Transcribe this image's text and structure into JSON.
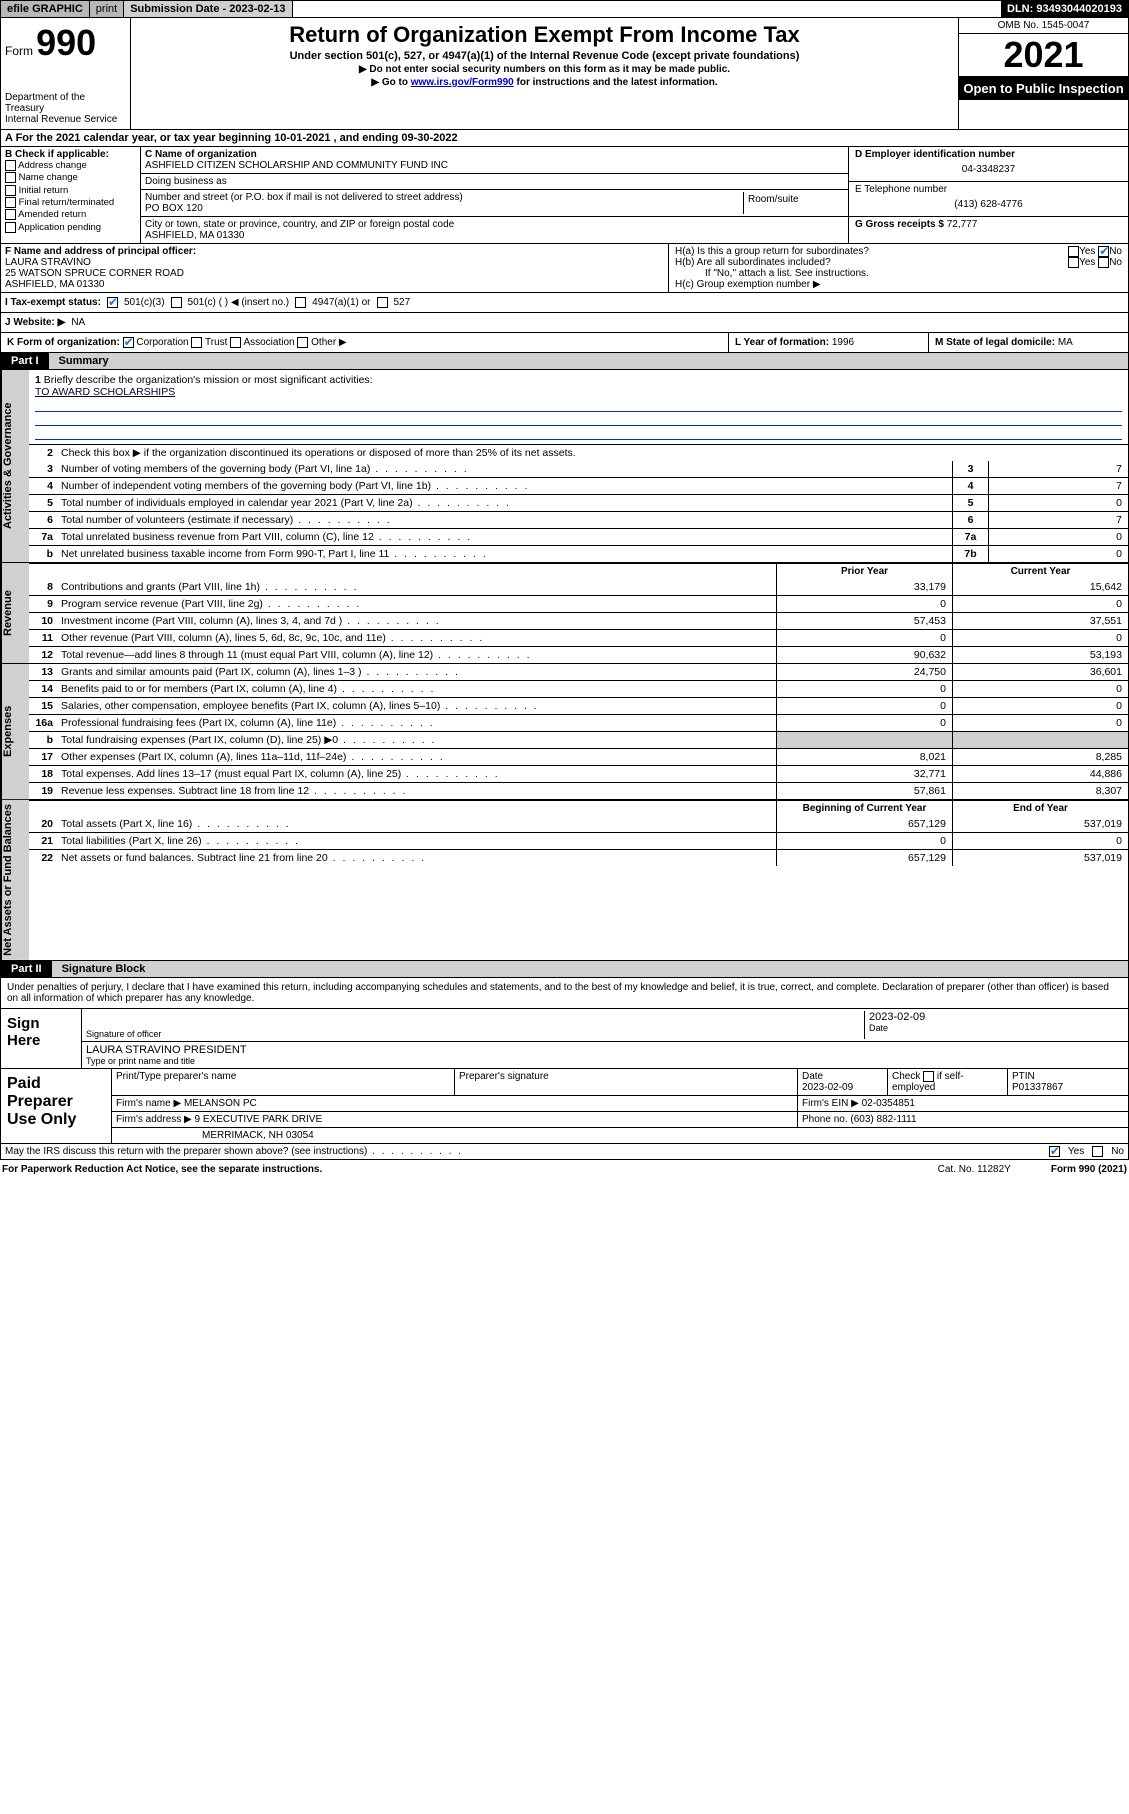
{
  "topbar": {
    "efile": "efile GRAPHIC",
    "print": "print",
    "sub_label": "Submission Date - ",
    "sub_date": "2023-02-13",
    "dln": "DLN: 93493044020193"
  },
  "header": {
    "form_prefix": "Form",
    "form_num": "990",
    "title": "Return of Organization Exempt From Income Tax",
    "subtitle": "Under section 501(c), 527, or 4947(a)(1) of the Internal Revenue Code (except private foundations)",
    "note1": "▶ Do not enter social security numbers on this form as it may be made public.",
    "note2_pre": "▶ Go to ",
    "note2_link": "www.irs.gov/Form990",
    "note2_post": " for instructions and the latest information.",
    "dept": "Department of the Treasury",
    "irs": "Internal Revenue Service",
    "omb": "OMB No. 1545-0047",
    "year": "2021",
    "inspection": "Open to Public Inspection"
  },
  "rowA": "A For the 2021 calendar year, or tax year beginning 10-01-2021   , and ending 09-30-2022",
  "colB": {
    "hdr": "B Check if applicable:",
    "opts": [
      "Address change",
      "Name change",
      "Initial return",
      "Final return/terminated",
      "Amended return",
      "Application pending"
    ]
  },
  "colC": {
    "name_lbl": "C Name of organization",
    "name": "ASHFIELD CITIZEN SCHOLARSHIP AND COMMUNITY FUND INC",
    "dba_lbl": "Doing business as",
    "dba": "",
    "street_lbl": "Number and street (or P.O. box if mail is not delivered to street address)",
    "room_lbl": "Room/suite",
    "street": "PO BOX 120",
    "city_lbl": "City or town, state or province, country, and ZIP or foreign postal code",
    "city": "ASHFIELD, MA  01330"
  },
  "colD": {
    "ein_lbl": "D Employer identification number",
    "ein": "04-3348237",
    "tel_lbl": "E Telephone number",
    "tel": "(413) 628-4776",
    "gross_lbl": "G Gross receipts $",
    "gross": "72,777"
  },
  "rowF": {
    "lbl": "F Name and address of principal officer:",
    "name": "LAURA STRAVINO",
    "addr1": "25 WATSON SPRUCE CORNER ROAD",
    "addr2": "ASHFIELD, MA  01330"
  },
  "rowH": {
    "a": "H(a)  Is this a group return for subordinates?",
    "b": "H(b)  Are all subordinates included?",
    "b_note": "If \"No,\" attach a list. See instructions.",
    "c": "H(c)  Group exemption number ▶"
  },
  "rowI": {
    "lbl": "I   Tax-exempt status:",
    "o1": "501(c)(3)",
    "o2": "501(c) (  ) ◀ (insert no.)",
    "o3": "4947(a)(1) or",
    "o4": "527"
  },
  "rowJ": {
    "lbl": "J   Website: ▶",
    "val": "NA"
  },
  "rowK": {
    "lbl": "K Form of organization:",
    "opts": [
      "Corporation",
      "Trust",
      "Association",
      "Other ▶"
    ]
  },
  "rowL": {
    "lbl": "L Year of formation:",
    "val": "1996"
  },
  "rowM": {
    "lbl": "M State of legal domicile:",
    "val": "MA"
  },
  "parts": {
    "p1": "Part I",
    "p1_title": "Summary",
    "p2": "Part II",
    "p2_title": "Signature Block"
  },
  "sections": {
    "gov": "Activities & Governance",
    "rev": "Revenue",
    "exp": "Expenses",
    "net": "Net Assets or Fund Balances"
  },
  "gov": {
    "l1_lbl": "Briefly describe the organization's mission or most significant activities:",
    "l1_val": "TO AWARD SCHOLARSHIPS",
    "l2": "Check this box ▶       if the organization discontinued its operations or disposed of more than 25% of its net assets.",
    "rows": [
      {
        "n": "3",
        "d": "Number of voting members of the governing body (Part VI, line 1a)",
        "b": "3",
        "v": "7"
      },
      {
        "n": "4",
        "d": "Number of independent voting members of the governing body (Part VI, line 1b)",
        "b": "4",
        "v": "7"
      },
      {
        "n": "5",
        "d": "Total number of individuals employed in calendar year 2021 (Part V, line 2a)",
        "b": "5",
        "v": "0"
      },
      {
        "n": "6",
        "d": "Total number of volunteers (estimate if necessary)",
        "b": "6",
        "v": "7"
      },
      {
        "n": "7a",
        "d": "Total unrelated business revenue from Part VIII, column (C), line 12",
        "b": "7a",
        "v": "0"
      },
      {
        "n": "b",
        "d": "Net unrelated business taxable income from Form 990-T, Part I, line 11",
        "b": "7b",
        "v": "0"
      }
    ]
  },
  "hdr2": {
    "prior": "Prior Year",
    "curr": "Current Year"
  },
  "rev": [
    {
      "n": "8",
      "d": "Contributions and grants (Part VIII, line 1h)",
      "p": "33,179",
      "c": "15,642"
    },
    {
      "n": "9",
      "d": "Program service revenue (Part VIII, line 2g)",
      "p": "0",
      "c": "0"
    },
    {
      "n": "10",
      "d": "Investment income (Part VIII, column (A), lines 3, 4, and 7d )",
      "p": "57,453",
      "c": "37,551"
    },
    {
      "n": "11",
      "d": "Other revenue (Part VIII, column (A), lines 5, 6d, 8c, 9c, 10c, and 11e)",
      "p": "0",
      "c": "0"
    },
    {
      "n": "12",
      "d": "Total revenue—add lines 8 through 11 (must equal Part VIII, column (A), line 12)",
      "p": "90,632",
      "c": "53,193"
    }
  ],
  "exp": [
    {
      "n": "13",
      "d": "Grants and similar amounts paid (Part IX, column (A), lines 1–3 )",
      "p": "24,750",
      "c": "36,601"
    },
    {
      "n": "14",
      "d": "Benefits paid to or for members (Part IX, column (A), line 4)",
      "p": "0",
      "c": "0"
    },
    {
      "n": "15",
      "d": "Salaries, other compensation, employee benefits (Part IX, column (A), lines 5–10)",
      "p": "0",
      "c": "0"
    },
    {
      "n": "16a",
      "d": "Professional fundraising fees (Part IX, column (A), line 11e)",
      "p": "0",
      "c": "0"
    },
    {
      "n": "b",
      "d": "Total fundraising expenses (Part IX, column (D), line 25) ▶0",
      "p": "",
      "c": "",
      "grey": true
    },
    {
      "n": "17",
      "d": "Other expenses (Part IX, column (A), lines 11a–11d, 11f–24e)",
      "p": "8,021",
      "c": "8,285"
    },
    {
      "n": "18",
      "d": "Total expenses. Add lines 13–17 (must equal Part IX, column (A), line 25)",
      "p": "32,771",
      "c": "44,886"
    },
    {
      "n": "19",
      "d": "Revenue less expenses. Subtract line 18 from line 12",
      "p": "57,861",
      "c": "8,307"
    }
  ],
  "hdr3": {
    "beg": "Beginning of Current Year",
    "end": "End of Year"
  },
  "net": [
    {
      "n": "20",
      "d": "Total assets (Part X, line 16)",
      "p": "657,129",
      "c": "537,019"
    },
    {
      "n": "21",
      "d": "Total liabilities (Part X, line 26)",
      "p": "0",
      "c": "0"
    },
    {
      "n": "22",
      "d": "Net assets or fund balances. Subtract line 21 from line 20",
      "p": "657,129",
      "c": "537,019"
    }
  ],
  "sig": {
    "decl": "Under penalties of perjury, I declare that I have examined this return, including accompanying schedules and statements, and to the best of my knowledge and belief, it is true, correct, and complete. Declaration of preparer (other than officer) is based on all information of which preparer has any knowledge.",
    "here": "Sign Here",
    "sig_lbl": "Signature of officer",
    "date_lbl": "Date",
    "date": "2023-02-09",
    "name": "LAURA STRAVINO  PRESIDENT",
    "name_lbl": "Type or print name and title"
  },
  "prep": {
    "title": "Paid Preparer Use Only",
    "r1": {
      "a": "Print/Type preparer's name",
      "b": "Preparer's signature",
      "c_lbl": "Date",
      "c": "2023-02-09",
      "d_lbl": "Check       if self-employed",
      "e_lbl": "PTIN",
      "e": "P01337867"
    },
    "r2": {
      "a_lbl": "Firm's name   ▶",
      "a": "MELANSON PC",
      "b_lbl": "Firm's EIN ▶",
      "b": "02-0354851"
    },
    "r3": {
      "a_lbl": "Firm's address ▶",
      "a": "9 EXECUTIVE PARK DRIVE",
      "b_lbl": "Phone no.",
      "b": "(603) 882-1111"
    },
    "r4": {
      "a": "MERRIMACK, NH  03054"
    }
  },
  "footer": {
    "q": "May the IRS discuss this return with the preparer shown above? (see instructions)",
    "yes": "Yes",
    "no": "No",
    "pw": "For Paperwork Reduction Act Notice, see the separate instructions.",
    "cat": "Cat. No. 11282Y",
    "form": "Form 990 (2021)"
  },
  "colors": {
    "link": "#0000cc",
    "check": "#1976d2",
    "grey": "#d0d0d0"
  }
}
